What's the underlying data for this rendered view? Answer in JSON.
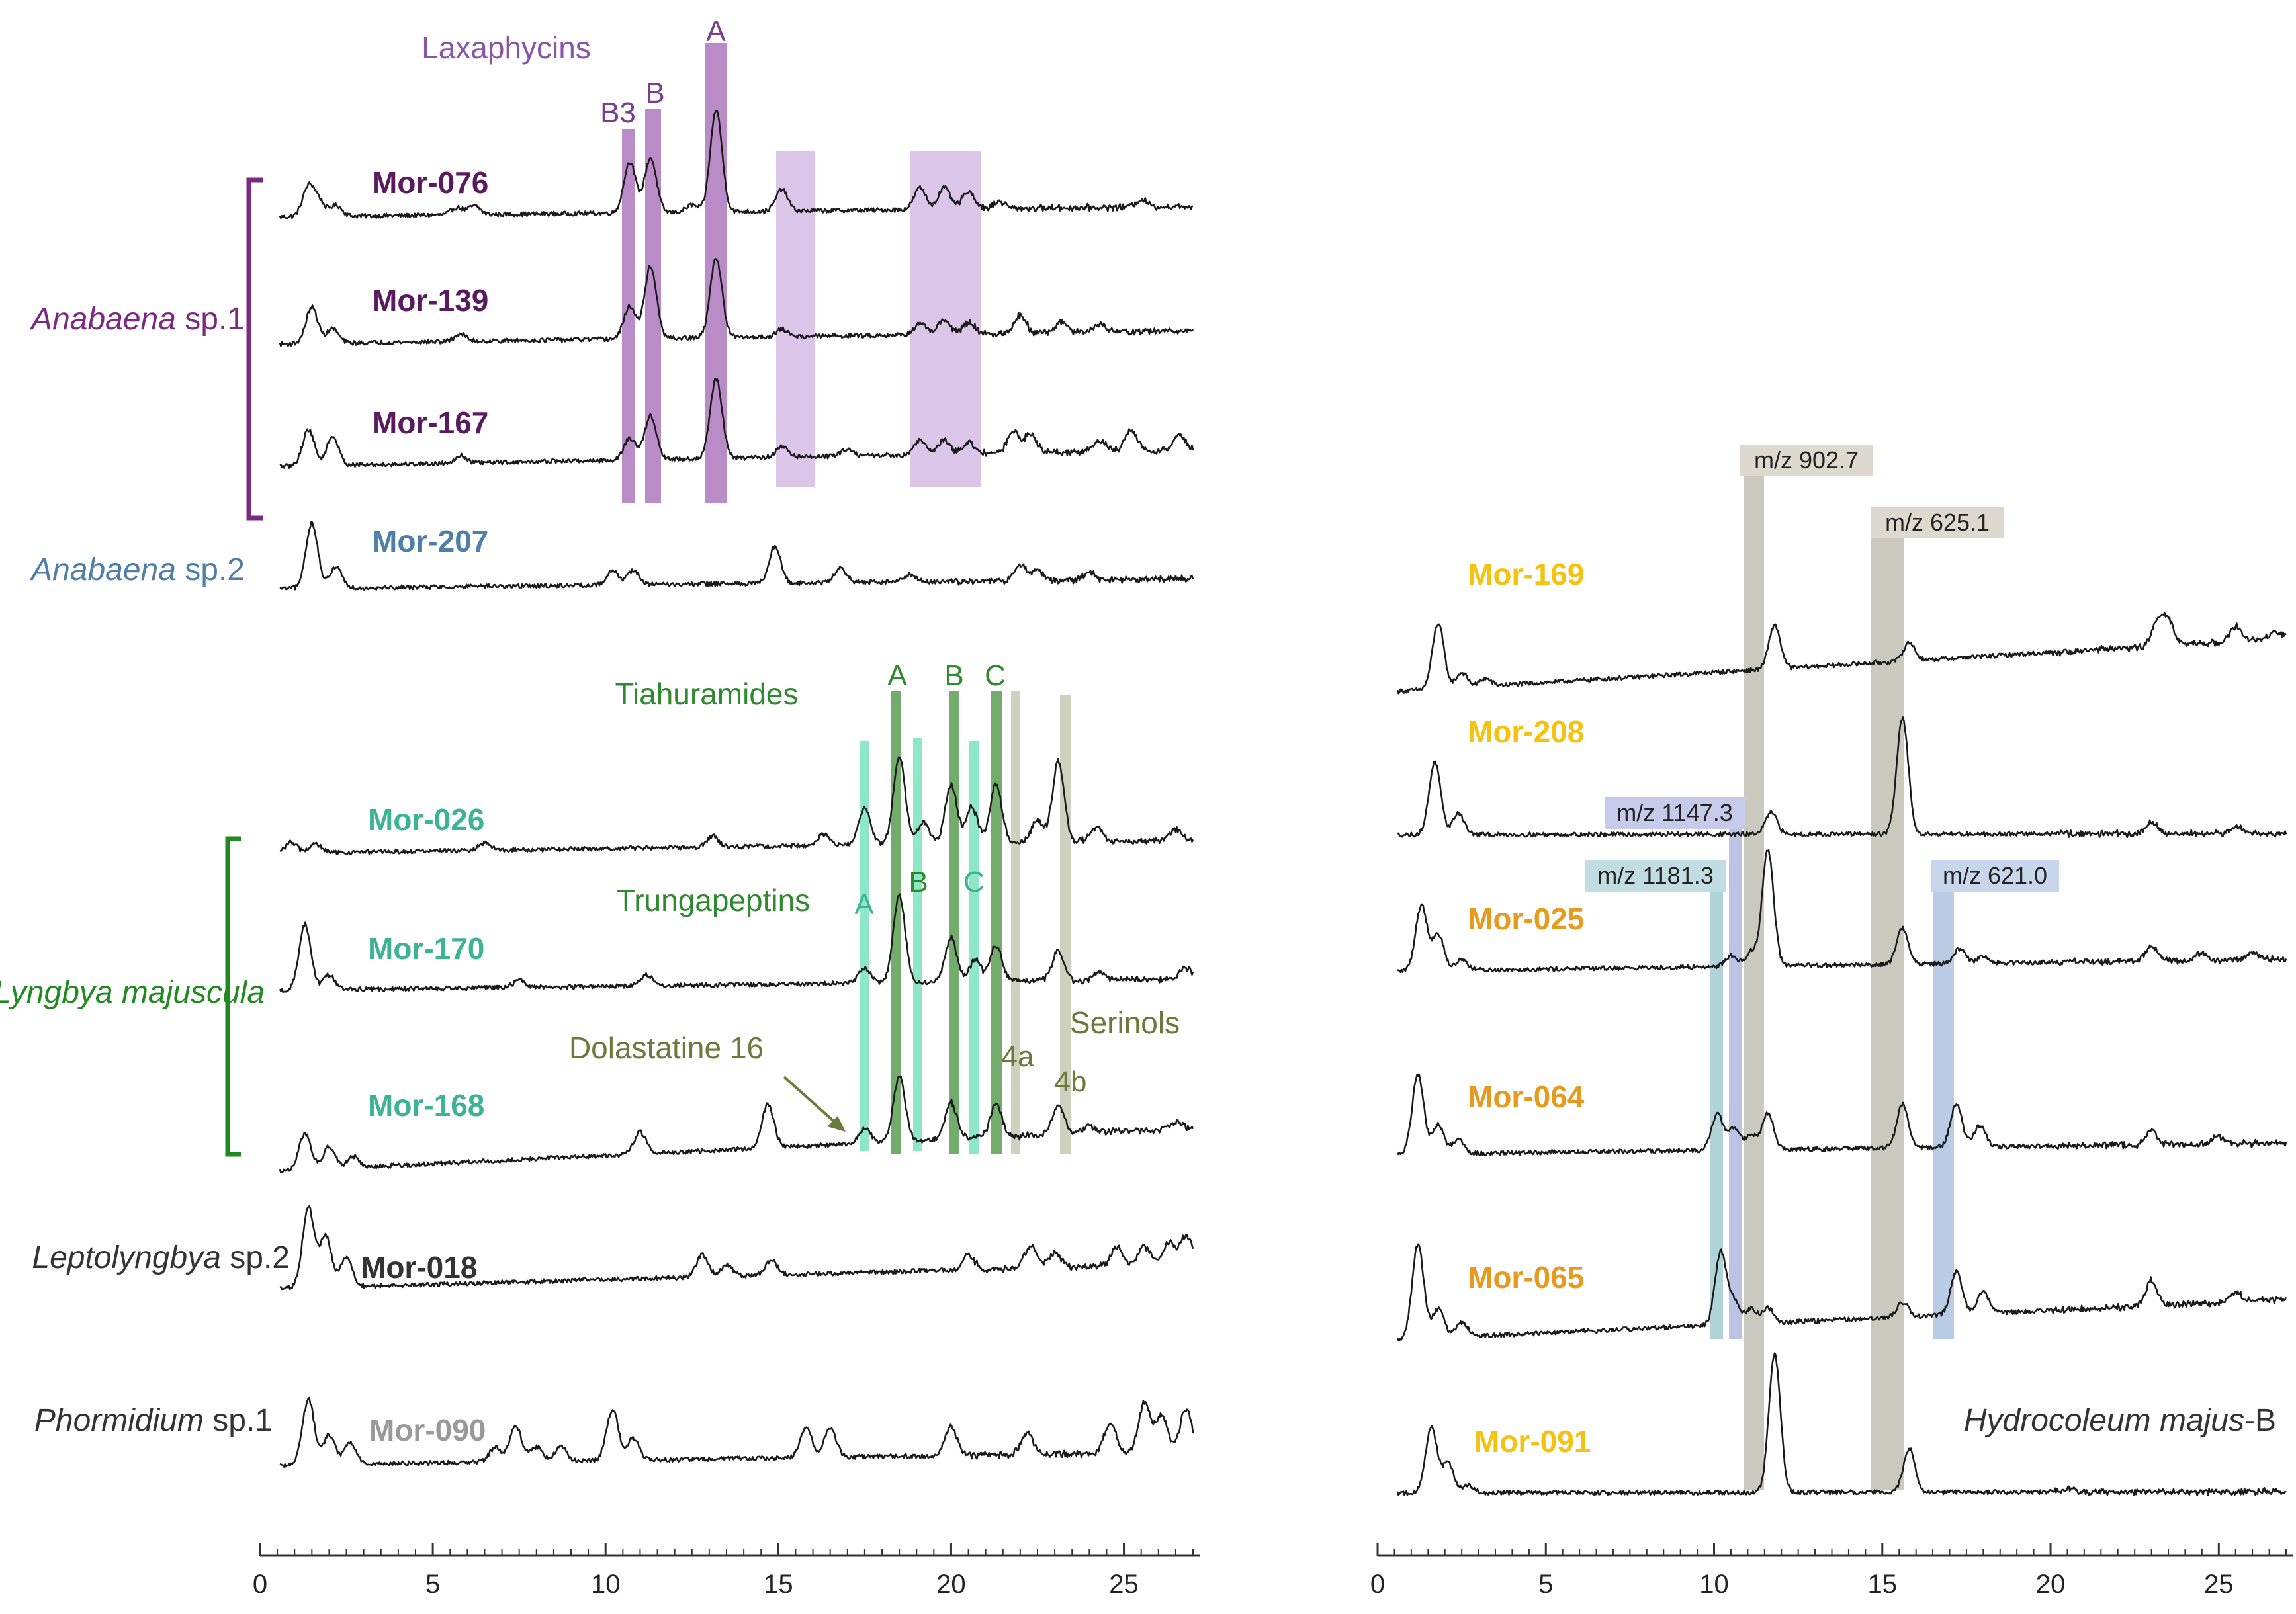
{
  "chart_data": [
    {
      "type": "line",
      "title": "",
      "xlabel": "",
      "ylabel": "",
      "xlim": [
        0,
        27
      ],
      "x_ticks": [
        "0",
        "5",
        "10",
        "15",
        "20",
        "25"
      ],
      "groups": [
        {
          "name_italic": "Anabaena",
          "name_rest": " sp.1",
          "color": "#7a2a82"
        },
        {
          "name_italic": "Anabaena",
          "name_rest": " sp.2",
          "color": "#4f7fa6"
        },
        {
          "name_italic": "Lyngbya majuscula",
          "name_rest": "",
          "color": "#1f8a1f"
        },
        {
          "name_italic": "Leptolyngbya",
          "name_rest": " sp.2",
          "color": "#333333"
        },
        {
          "name_italic": "Phormidium",
          "name_rest": " sp.1",
          "color": "#333333"
        }
      ],
      "series": [
        {
          "name": "Mor-076",
          "color": "#5a1a60",
          "peaks": [
            [
              1.4,
              0.4
            ],
            [
              1.7,
              0.2
            ],
            [
              2.2,
              0.15
            ],
            [
              5.7,
              0.1
            ],
            [
              6.2,
              0.12
            ],
            [
              10.7,
              0.7
            ],
            [
              11.3,
              0.75
            ],
            [
              12.5,
              0.1
            ],
            [
              13.2,
              1.4
            ],
            [
              15.1,
              0.3
            ],
            [
              19.1,
              0.3
            ],
            [
              19.8,
              0.3
            ],
            [
              20.5,
              0.25
            ],
            [
              21.4,
              0.1
            ],
            [
              25.5,
              0.1
            ]
          ]
        },
        {
          "name": "Mor-139",
          "color": "#5a1a60",
          "peaks": [
            [
              1.5,
              0.5
            ],
            [
              2.1,
              0.2
            ],
            [
              5.8,
              0.1
            ],
            [
              10.7,
              0.45
            ],
            [
              11.3,
              1.0
            ],
            [
              13.2,
              1.1
            ],
            [
              15.1,
              0.1
            ],
            [
              19.1,
              0.15
            ],
            [
              19.8,
              0.2
            ],
            [
              20.5,
              0.15
            ],
            [
              22.0,
              0.25
            ],
            [
              23.2,
              0.15
            ],
            [
              24.3,
              0.1
            ]
          ]
        },
        {
          "name": "Mor-167",
          "color": "#5a1a60",
          "peaks": [
            [
              1.4,
              0.5
            ],
            [
              2.1,
              0.4
            ],
            [
              5.8,
              0.1
            ],
            [
              10.7,
              0.3
            ],
            [
              11.3,
              0.6
            ],
            [
              13.2,
              1.1
            ],
            [
              15.1,
              0.15
            ],
            [
              17.0,
              0.1
            ],
            [
              19.1,
              0.2
            ],
            [
              19.8,
              0.2
            ],
            [
              20.5,
              0.15
            ],
            [
              21.8,
              0.3
            ],
            [
              22.3,
              0.25
            ],
            [
              24.3,
              0.15
            ],
            [
              25.2,
              0.3
            ],
            [
              26.6,
              0.2
            ]
          ]
        },
        {
          "name": "Mor-207",
          "color": "#4f7fa6",
          "peaks": [
            [
              1.5,
              0.9
            ],
            [
              2.2,
              0.3
            ],
            [
              10.2,
              0.2
            ],
            [
              10.8,
              0.2
            ],
            [
              14.9,
              0.5
            ],
            [
              16.8,
              0.2
            ],
            [
              18.8,
              0.1
            ],
            [
              22.0,
              0.2
            ],
            [
              22.5,
              0.15
            ],
            [
              24.0,
              0.1
            ]
          ]
        },
        {
          "name": "Mor-026",
          "color": "#3cb395",
          "peaks": [
            [
              0.9,
              0.15
            ],
            [
              1.6,
              0.12
            ],
            [
              6.5,
              0.1
            ],
            [
              13.1,
              0.15
            ],
            [
              16.3,
              0.15
            ],
            [
              17.5,
              0.5
            ],
            [
              18.5,
              1.2
            ],
            [
              19.2,
              0.3
            ],
            [
              20.0,
              0.8
            ],
            [
              20.6,
              0.5
            ],
            [
              21.3,
              0.8
            ],
            [
              22.5,
              0.3
            ],
            [
              23.1,
              1.1
            ],
            [
              24.2,
              0.2
            ],
            [
              26.5,
              0.15
            ]
          ]
        },
        {
          "name": "Mor-170",
          "color": "#3cb395",
          "peaks": [
            [
              1.3,
              0.9
            ],
            [
              2.0,
              0.2
            ],
            [
              7.5,
              0.1
            ],
            [
              11.2,
              0.15
            ],
            [
              17.5,
              0.2
            ],
            [
              18.5,
              1.2
            ],
            [
              20.0,
              0.6
            ],
            [
              20.7,
              0.3
            ],
            [
              21.3,
              0.5
            ],
            [
              23.1,
              0.4
            ],
            [
              24.3,
              0.1
            ],
            [
              26.8,
              0.15
            ]
          ]
        },
        {
          "name": "Mor-168",
          "color": "#3cb395",
          "peaks": [
            [
              1.3,
              0.5
            ],
            [
              2.0,
              0.3
            ],
            [
              2.7,
              0.15
            ],
            [
              11.0,
              0.3
            ],
            [
              14.7,
              0.6
            ],
            [
              17.5,
              0.2
            ],
            [
              18.5,
              0.9
            ],
            [
              20.0,
              0.5
            ],
            [
              21.3,
              0.45
            ],
            [
              23.1,
              0.4
            ],
            [
              24.0,
              0.1
            ],
            [
              26.5,
              0.1
            ]
          ]
        },
        {
          "name": "Mor-018",
          "color": "#333333",
          "peaks": [
            [
              1.4,
              1.1
            ],
            [
              1.9,
              0.7
            ],
            [
              2.5,
              0.4
            ],
            [
              12.8,
              0.3
            ],
            [
              13.5,
              0.15
            ],
            [
              14.8,
              0.2
            ],
            [
              20.5,
              0.2
            ],
            [
              22.3,
              0.3
            ],
            [
              23.0,
              0.2
            ],
            [
              24.8,
              0.25
            ],
            [
              25.6,
              0.25
            ],
            [
              26.3,
              0.3
            ],
            [
              26.8,
              0.4
            ]
          ]
        },
        {
          "name": "Mor-090",
          "color": "#999999",
          "peaks": [
            [
              1.4,
              0.9
            ],
            [
              2.0,
              0.4
            ],
            [
              2.6,
              0.3
            ],
            [
              6.8,
              0.2
            ],
            [
              7.4,
              0.5
            ],
            [
              8.0,
              0.2
            ],
            [
              8.7,
              0.2
            ],
            [
              10.2,
              0.7
            ],
            [
              10.8,
              0.3
            ],
            [
              15.8,
              0.4
            ],
            [
              16.5,
              0.4
            ],
            [
              20.0,
              0.4
            ],
            [
              22.2,
              0.3
            ],
            [
              24.6,
              0.4
            ],
            [
              25.6,
              0.7
            ],
            [
              26.1,
              0.5
            ],
            [
              26.8,
              0.6
            ]
          ]
        }
      ]
    },
    {
      "type": "line",
      "title": "",
      "xlabel": "",
      "ylabel": "",
      "xlim": [
        0,
        27
      ],
      "x_ticks": [
        "0",
        "5",
        "10",
        "15",
        "20",
        "25"
      ],
      "species_label_italic": "Hydrocoleum majus",
      "species_label_rest": "-B",
      "series": [
        {
          "name": "Mor-169",
          "color": "#f5c211",
          "peaks": [
            [
              1.8,
              0.9
            ],
            [
              2.5,
              0.2
            ],
            [
              3.2,
              0.1
            ],
            [
              11.8,
              0.6
            ],
            [
              15.8,
              0.25
            ],
            [
              23.2,
              0.35
            ],
            [
              23.5,
              0.3
            ],
            [
              25.5,
              0.2
            ],
            [
              26.7,
              0.1
            ]
          ]
        },
        {
          "name": "Mor-208",
          "color": "#f5c211",
          "peaks": [
            [
              1.7,
              1.0
            ],
            [
              2.4,
              0.3
            ],
            [
              11.7,
              0.3
            ],
            [
              15.6,
              1.6
            ],
            [
              23.0,
              0.15
            ],
            [
              25.5,
              0.1
            ]
          ]
        },
        {
          "name": "Mor-025",
          "color": "#e69a1e",
          "peaks": [
            [
              1.3,
              0.9
            ],
            [
              1.8,
              0.5
            ],
            [
              2.5,
              0.15
            ],
            [
              10.5,
              0.15
            ],
            [
              11.1,
              0.2
            ],
            [
              11.6,
              1.6
            ],
            [
              15.6,
              0.5
            ],
            [
              17.3,
              0.2
            ],
            [
              18.0,
              0.1
            ],
            [
              23.0,
              0.2
            ],
            [
              24.5,
              0.1
            ],
            [
              26.0,
              0.1
            ]
          ]
        },
        {
          "name": "Mor-064",
          "color": "#e69a1e",
          "peaks": [
            [
              1.2,
              1.1
            ],
            [
              1.8,
              0.4
            ],
            [
              2.4,
              0.2
            ],
            [
              10.1,
              0.5
            ],
            [
              10.6,
              0.3
            ],
            [
              11.1,
              0.2
            ],
            [
              11.6,
              0.5
            ],
            [
              15.6,
              0.6
            ],
            [
              17.2,
              0.6
            ],
            [
              17.9,
              0.3
            ],
            [
              23.0,
              0.2
            ],
            [
              25.0,
              0.1
            ]
          ]
        },
        {
          "name": "Mor-065",
          "color": "#e69a1e",
          "peaks": [
            [
              1.2,
              1.3
            ],
            [
              1.8,
              0.4
            ],
            [
              2.5,
              0.2
            ],
            [
              10.2,
              1.0
            ],
            [
              10.6,
              0.3
            ],
            [
              11.1,
              0.2
            ],
            [
              11.6,
              0.2
            ],
            [
              15.6,
              0.2
            ],
            [
              17.2,
              0.6
            ],
            [
              18.0,
              0.3
            ],
            [
              23.0,
              0.35
            ],
            [
              25.5,
              0.15
            ]
          ]
        },
        {
          "name": "Mor-091",
          "color": "#f5c211",
          "peaks": [
            [
              1.6,
              0.9
            ],
            [
              2.1,
              0.4
            ],
            [
              2.7,
              0.1
            ],
            [
              11.8,
              1.9
            ],
            [
              15.8,
              0.6
            ],
            [
              20.5,
              0.05
            ]
          ]
        }
      ]
    }
  ],
  "left_panel": {
    "laxaphycins_title": "Laxaphycins",
    "lax_a": "A",
    "lax_b": "B",
    "lax_b3": "B3",
    "tiahuramides_title": "Tiahuramides",
    "tia_a": "A",
    "tia_b": "B",
    "tia_c": "C",
    "trungapeptins_title": "Trungapeptins",
    "trung_a": "A",
    "trung_b": "B",
    "trung_c": "C",
    "dolastatine": "Dolastatine 16",
    "serinols": "Serinols",
    "ser_4a": "4a",
    "ser_4b": "4b",
    "highlight_colors": {
      "laxaphycin": "#a365b4",
      "laxaphycin_light": "#cfb1e0",
      "tia": "#5c9e54",
      "trung": "#52dcaa",
      "serinol": "#c7c9b4",
      "dola": "#6a7a3a"
    }
  },
  "right_panel": {
    "mz_902": "m/z 902.7",
    "mz_625": "m/z 625.1",
    "mz_1147": "m/z 1147.3",
    "mz_1181": "m/z 1181.3",
    "mz_621": "m/z 621.0",
    "highlight_colors": {
      "grey": "#c2c0b2",
      "purple": "#aab4de",
      "teal": "#9cc8ce",
      "blue": "#a9bfde"
    }
  }
}
